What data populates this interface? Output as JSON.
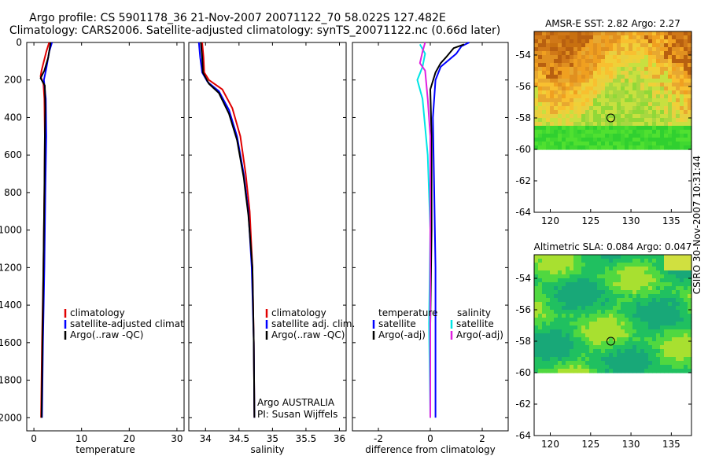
{
  "header": {
    "line1": "Argo profile: CS 5901178_36 21-Nov-2007 20071122_70 58.022S 127.482E",
    "line2": "Climatology: CARS2006. Satellite-adjusted climatology: synTS_20071122.nc (0.66d later)"
  },
  "side_label": "CSIRO 30-Nov-2007 10:31:44",
  "colors": {
    "clim": "#e00000",
    "sat": "#0000ff",
    "argo": "#000000",
    "sal_sat": "#00e5e5",
    "sal_argo": "#e020e0"
  },
  "chart_data": [
    {
      "id": "temperature",
      "type": "line",
      "xlabel": "temperature",
      "xlim": [
        -1.5,
        31.5
      ],
      "ylim": [
        2070,
        0
      ],
      "xticks": [
        0,
        10,
        20,
        30
      ],
      "xtick_labels": [
        "0",
        "10",
        "20",
        "30"
      ],
      "yticks": [
        0,
        200,
        400,
        600,
        800,
        1000,
        1200,
        1400,
        1600,
        1800,
        2000
      ],
      "ytick_labels": [
        "0",
        "200",
        "400",
        "600",
        "800",
        "1000",
        "1200",
        "1400",
        "1600",
        "1800",
        "2000"
      ],
      "legend": [
        "climatology",
        "satellite-adjusted climatology",
        "Argo(..raw -QC)"
      ],
      "series": [
        {
          "name": "climatology",
          "color": "clim",
          "points": [
            [
              3.2,
              0
            ],
            [
              2.6,
              50
            ],
            [
              1.6,
              150
            ],
            [
              1.4,
              180
            ],
            [
              2.0,
              220
            ],
            [
              2.2,
              300
            ],
            [
              2.3,
              500
            ],
            [
              2.2,
              800
            ],
            [
              2.0,
              1200
            ],
            [
              1.7,
              1600
            ],
            [
              1.5,
              2000
            ]
          ]
        },
        {
          "name": "satellite-adjusted climatology",
          "color": "sat",
          "points": [
            [
              3.8,
              0
            ],
            [
              3.2,
              50
            ],
            [
              2.6,
              140
            ],
            [
              2.1,
              200
            ],
            [
              2.5,
              300
            ],
            [
              2.6,
              500
            ],
            [
              2.4,
              800
            ],
            [
              2.2,
              1200
            ],
            [
              1.9,
              1600
            ],
            [
              1.7,
              2000
            ]
          ]
        },
        {
          "name": "Argo(..raw -QC)",
          "color": "argo",
          "points": [
            [
              3.5,
              0
            ],
            [
              3.0,
              80
            ],
            [
              2.2,
              150
            ],
            [
              1.4,
              190
            ],
            [
              2.3,
              230
            ],
            [
              2.4,
              350
            ],
            [
              2.3,
              500
            ],
            [
              2.2,
              800
            ],
            [
              2.0,
              1200
            ],
            [
              1.8,
              1600
            ],
            [
              1.6,
              2000
            ]
          ]
        }
      ]
    },
    {
      "id": "salinity",
      "type": "line",
      "xlabel": "salinity",
      "xlim": [
        33.75,
        36.1
      ],
      "ylim": [
        2070,
        0
      ],
      "xticks": [
        34,
        34.5,
        35,
        35.5,
        36
      ],
      "xtick_labels": [
        "34",
        "34.5",
        "35",
        "35.5",
        "36"
      ],
      "legend": [
        "climatology",
        "satellite adj. clim.",
        "Argo(..raw -QC)"
      ],
      "annotation": [
        "Argo AUSTRALIA",
        "PI: Susan Wijffels"
      ],
      "series": [
        {
          "name": "climatology",
          "color": "clim",
          "points": [
            [
              33.95,
              0
            ],
            [
              33.97,
              80
            ],
            [
              33.98,
              160
            ],
            [
              34.05,
              200
            ],
            [
              34.25,
              250
            ],
            [
              34.4,
              350
            ],
            [
              34.52,
              500
            ],
            [
              34.6,
              700
            ],
            [
              34.66,
              900
            ],
            [
              34.7,
              1200
            ],
            [
              34.72,
              1600
            ],
            [
              34.73,
              2000
            ]
          ]
        },
        {
          "name": "satellite adj. clim.",
          "color": "sat",
          "points": [
            [
              33.9,
              0
            ],
            [
              33.92,
              80
            ],
            [
              33.95,
              160
            ],
            [
              34.03,
              210
            ],
            [
              34.2,
              260
            ],
            [
              34.35,
              360
            ],
            [
              34.47,
              500
            ],
            [
              34.57,
              700
            ],
            [
              34.64,
              900
            ],
            [
              34.69,
              1200
            ],
            [
              34.72,
              1600
            ],
            [
              34.73,
              2000
            ]
          ]
        },
        {
          "name": "Argo(..raw -QC)",
          "color": "argo",
          "points": [
            [
              33.93,
              0
            ],
            [
              33.95,
              80
            ],
            [
              33.96,
              160
            ],
            [
              34.05,
              220
            ],
            [
              34.2,
              270
            ],
            [
              34.35,
              380
            ],
            [
              34.47,
              520
            ],
            [
              34.57,
              720
            ],
            [
              34.64,
              920
            ],
            [
              34.7,
              1200
            ],
            [
              34.72,
              1600
            ],
            [
              34.73,
              2000
            ]
          ]
        }
      ]
    },
    {
      "id": "difference",
      "type": "line",
      "xlabel": "difference from climatology",
      "xlim": [
        -3.0,
        3.0
      ],
      "ylim": [
        2070,
        0
      ],
      "xticks": [
        -2,
        0,
        2
      ],
      "xtick_labels": [
        "-2",
        "0",
        "2"
      ],
      "legend_left": {
        "title": "temperature",
        "items": [
          "satellite",
          "Argo(-adj)"
        ]
      },
      "legend_right": {
        "title": "salinity",
        "items": [
          "satellite",
          "Argo(-adj)"
        ]
      },
      "series": [
        {
          "name": "temperature satellite",
          "color": "sat",
          "points": [
            [
              1.5,
              0
            ],
            [
              1.2,
              20
            ],
            [
              1.0,
              60
            ],
            [
              0.4,
              130
            ],
            [
              0.2,
              200
            ],
            [
              0.1,
              400
            ],
            [
              0.15,
              800
            ],
            [
              0.2,
              1200
            ],
            [
              0.2,
              1600
            ],
            [
              0.2,
              2000
            ]
          ]
        },
        {
          "name": "temperature Argo(-adj)",
          "color": "argo",
          "points": [
            [
              1.3,
              10
            ],
            [
              0.9,
              30
            ],
            [
              0.6,
              80
            ],
            [
              0.4,
              110
            ],
            [
              0.2,
              160
            ],
            [
              0.0,
              250
            ],
            [
              0.05,
              500
            ],
            [
              0.05,
              1000
            ],
            [
              0.0,
              1500
            ],
            [
              0.0,
              2000
            ]
          ]
        },
        {
          "name": "salinity satellite",
          "color": "sal_sat",
          "points": [
            [
              -0.4,
              10
            ],
            [
              -0.2,
              60
            ],
            [
              -0.3,
              130
            ],
            [
              -0.5,
              200
            ],
            [
              -0.3,
              300
            ],
            [
              -0.1,
              600
            ],
            [
              0.0,
              1000
            ],
            [
              -0.05,
              1500
            ],
            [
              0.0,
              2000
            ]
          ]
        },
        {
          "name": "salinity Argo(-adj)",
          "color": "sal_argo",
          "points": [
            [
              -0.2,
              0
            ],
            [
              -0.3,
              50
            ],
            [
              -0.4,
              110
            ],
            [
              -0.2,
              150
            ],
            [
              -0.1,
              300
            ],
            [
              0.0,
              500
            ],
            [
              0.0,
              1000
            ],
            [
              0.0,
              2000
            ]
          ]
        }
      ]
    },
    {
      "id": "sst_map",
      "type": "heatmap",
      "title": "AMSR-E SST: 2.82 Argo: 2.27",
      "xlim": [
        118,
        137.5
      ],
      "ylim": [
        -64,
        -52.5
      ],
      "xticks": [
        120,
        125,
        130,
        135
      ],
      "xtick_labels": [
        "120",
        "125",
        "130",
        "135"
      ],
      "yticks": [
        -54,
        -56,
        -58,
        -60,
        -62,
        -64
      ],
      "ytick_labels": [
        "-54",
        "-56",
        "-58",
        "-60",
        "-62",
        "-64"
      ],
      "data_ymin": -60,
      "marker": [
        127.5,
        -58.0
      ]
    },
    {
      "id": "sla_map",
      "type": "heatmap",
      "title": "Altimetric SLA: 0.084 Argo: 0.047",
      "xlim": [
        118,
        137.5
      ],
      "ylim": [
        -64,
        -52.5
      ],
      "xticks": [
        120,
        125,
        130,
        135
      ],
      "xtick_labels": [
        "120",
        "125",
        "130",
        "135"
      ],
      "yticks": [
        -54,
        -56,
        -58,
        -60,
        -62,
        -64
      ],
      "ytick_labels": [
        "-54",
        "-56",
        "-58",
        "-60",
        "-62",
        "-64"
      ],
      "data_ymin": -60,
      "marker": [
        127.5,
        -58.0
      ]
    }
  ]
}
